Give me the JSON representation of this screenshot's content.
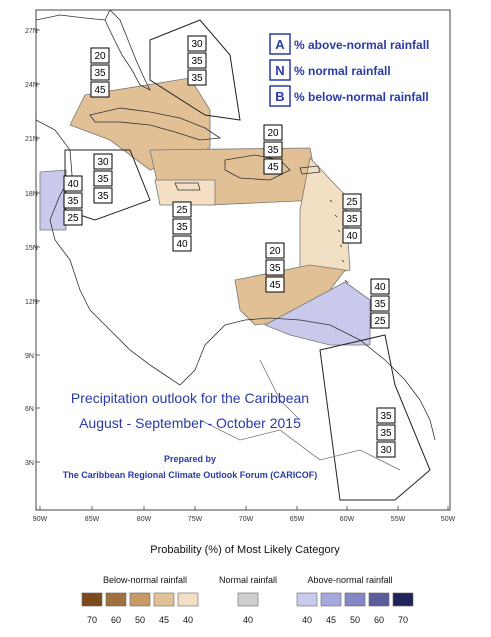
{
  "legend": [
    {
      "letter": "A",
      "text": "% above-normal rainfall"
    },
    {
      "letter": "N",
      "text": "% normal rainfall"
    },
    {
      "letter": "B",
      "text": "% below-normal rainfall"
    }
  ],
  "title_line1": "Precipitation outlook for the Caribbean",
  "title_line2": "August - September - October 2015",
  "prepared_line1": "Prepared by",
  "prepared_line2": "The Caribbean Regional Climate Outlook Forum (CARICOF)",
  "lat_labels": [
    "27N",
    "24N",
    "21N",
    "18N",
    "15N",
    "12N",
    "9N",
    "6N",
    "3N"
  ],
  "lon_labels": [
    "90W",
    "85W",
    "80W",
    "75W",
    "70W",
    "65W",
    "60W",
    "55W",
    "50W"
  ],
  "prob_title": "Probability (%) of Most Likely Category",
  "cat_below": "Below-normal rainfall",
  "cat_normal": "Normal rainfall",
  "cat_above": "Above-normal rainfall",
  "below_values": [
    "70",
    "60",
    "50",
    "45",
    "40"
  ],
  "normal_values": [
    "40"
  ],
  "above_values": [
    "40",
    "45",
    "50",
    "60",
    "70"
  ],
  "colors": {
    "below": [
      "#7a4a1e",
      "#a0703e",
      "#c79a66",
      "#e2c096",
      "#f3dfc3"
    ],
    "normal": "#cfcfcf",
    "above": [
      "#c9c9ec",
      "#a7a7dc",
      "#8686c4",
      "#5d5d9e",
      "#23235a"
    ],
    "text_blue": "#2a3aa8"
  },
  "regions": [
    {
      "name": "bahamas",
      "values": [
        "30",
        "35",
        "35"
      ]
    },
    {
      "name": "cuba-west",
      "values": [
        "20",
        "35",
        "45"
      ]
    },
    {
      "name": "hispaniola-pr",
      "values": [
        "20",
        "35",
        "45"
      ]
    },
    {
      "name": "yucatan",
      "values": [
        "40",
        "35",
        "25"
      ]
    },
    {
      "name": "cayman",
      "values": [
        "30",
        "35",
        "35"
      ]
    },
    {
      "name": "jamaica",
      "values": [
        "25",
        "35",
        "40"
      ]
    },
    {
      "name": "leeward",
      "values": [
        "25",
        "35",
        "40"
      ]
    },
    {
      "name": "abc-islands",
      "values": [
        "20",
        "35",
        "45"
      ]
    },
    {
      "name": "trinidad",
      "values": [
        "40",
        "35",
        "25"
      ]
    },
    {
      "name": "guianas",
      "values": [
        "35",
        "35",
        "30"
      ]
    }
  ]
}
